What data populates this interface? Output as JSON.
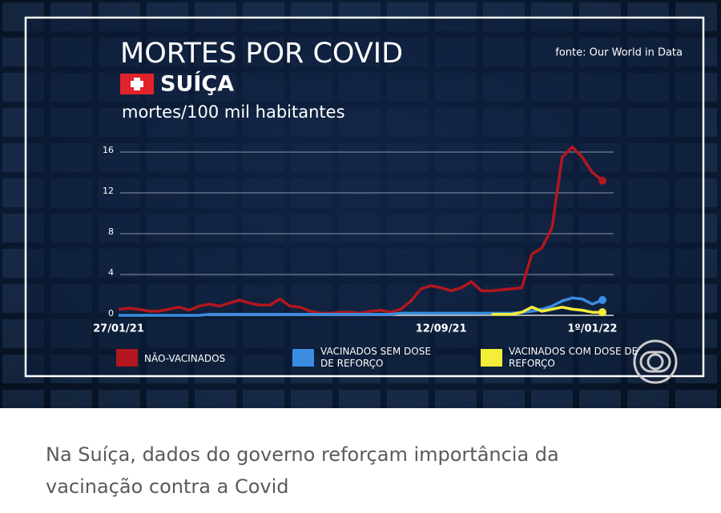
{
  "chart_data": {
    "type": "line",
    "title": "MORTES POR COVID",
    "country": "SUÍÇA",
    "subtitle": "mortes/100 mil habitantes",
    "source": "fonte: Our World in Data",
    "categories": [
      "27/01/21",
      null,
      null,
      null,
      null,
      null,
      null,
      null,
      null,
      null,
      null,
      null,
      null,
      null,
      null,
      null,
      null,
      null,
      null,
      null,
      null,
      null,
      null,
      null,
      null,
      null,
      null,
      null,
      null,
      null,
      null,
      null,
      "12/09/21",
      null,
      null,
      null,
      null,
      null,
      null,
      null,
      null,
      null,
      null,
      null,
      null,
      null,
      null,
      "1º/01/22",
      null
    ],
    "ylim": [
      0,
      16
    ],
    "yticks": [
      0,
      4,
      8,
      12,
      16
    ],
    "grid": true,
    "legend": "bottom",
    "series": [
      {
        "name": "NÃO-VACINADOS",
        "color": "#b3161e",
        "values": [
          0.6,
          0.7,
          0.6,
          0.4,
          0.4,
          0.6,
          0.8,
          0.5,
          0.9,
          1.1,
          0.9,
          1.2,
          1.5,
          1.2,
          1.0,
          1.0,
          1.6,
          0.9,
          0.8,
          0.4,
          0.2,
          0.2,
          0.3,
          0.3,
          0.2,
          0.4,
          0.5,
          0.3,
          0.6,
          1.4,
          2.6,
          2.9,
          2.7,
          2.4,
          2.7,
          3.3,
          2.4,
          2.4,
          2.5,
          2.6,
          2.7,
          6.0,
          6.6,
          8.6,
          15.5,
          16.5,
          15.5,
          14.0,
          13.2
        ]
      },
      {
        "name": "VACINADOS SEM DOSE DE REFORÇO",
        "color": "#3a8de0",
        "values": [
          0.0,
          0.0,
          0.0,
          0.0,
          0.0,
          0.0,
          0.0,
          0.0,
          0.0,
          0.1,
          0.1,
          0.1,
          0.1,
          0.1,
          0.1,
          0.1,
          0.1,
          0.1,
          0.1,
          0.1,
          0.1,
          0.1,
          0.1,
          0.1,
          0.1,
          0.1,
          0.1,
          0.1,
          0.2,
          0.2,
          0.2,
          0.2,
          0.2,
          0.2,
          0.2,
          0.2,
          0.2,
          0.2,
          0.2,
          0.2,
          0.3,
          0.4,
          0.6,
          0.9,
          1.4,
          1.7,
          1.6,
          1.1,
          1.5
        ]
      },
      {
        "name": "VACINADOS COM DOSE DE REFORÇO",
        "color": "#f2ee3a",
        "values": [
          null,
          null,
          null,
          null,
          null,
          null,
          null,
          null,
          null,
          null,
          null,
          null,
          null,
          null,
          null,
          null,
          null,
          null,
          null,
          null,
          null,
          null,
          null,
          null,
          null,
          null,
          null,
          null,
          null,
          null,
          null,
          null,
          null,
          null,
          null,
          null,
          null,
          0.1,
          0.1,
          0.1,
          0.3,
          0.8,
          0.4,
          0.6,
          0.8,
          0.6,
          0.5,
          0.3,
          0.3
        ]
      }
    ]
  },
  "caption": "Na Suíça, dados do governo reforçam importância da vacinação contra a Covid"
}
